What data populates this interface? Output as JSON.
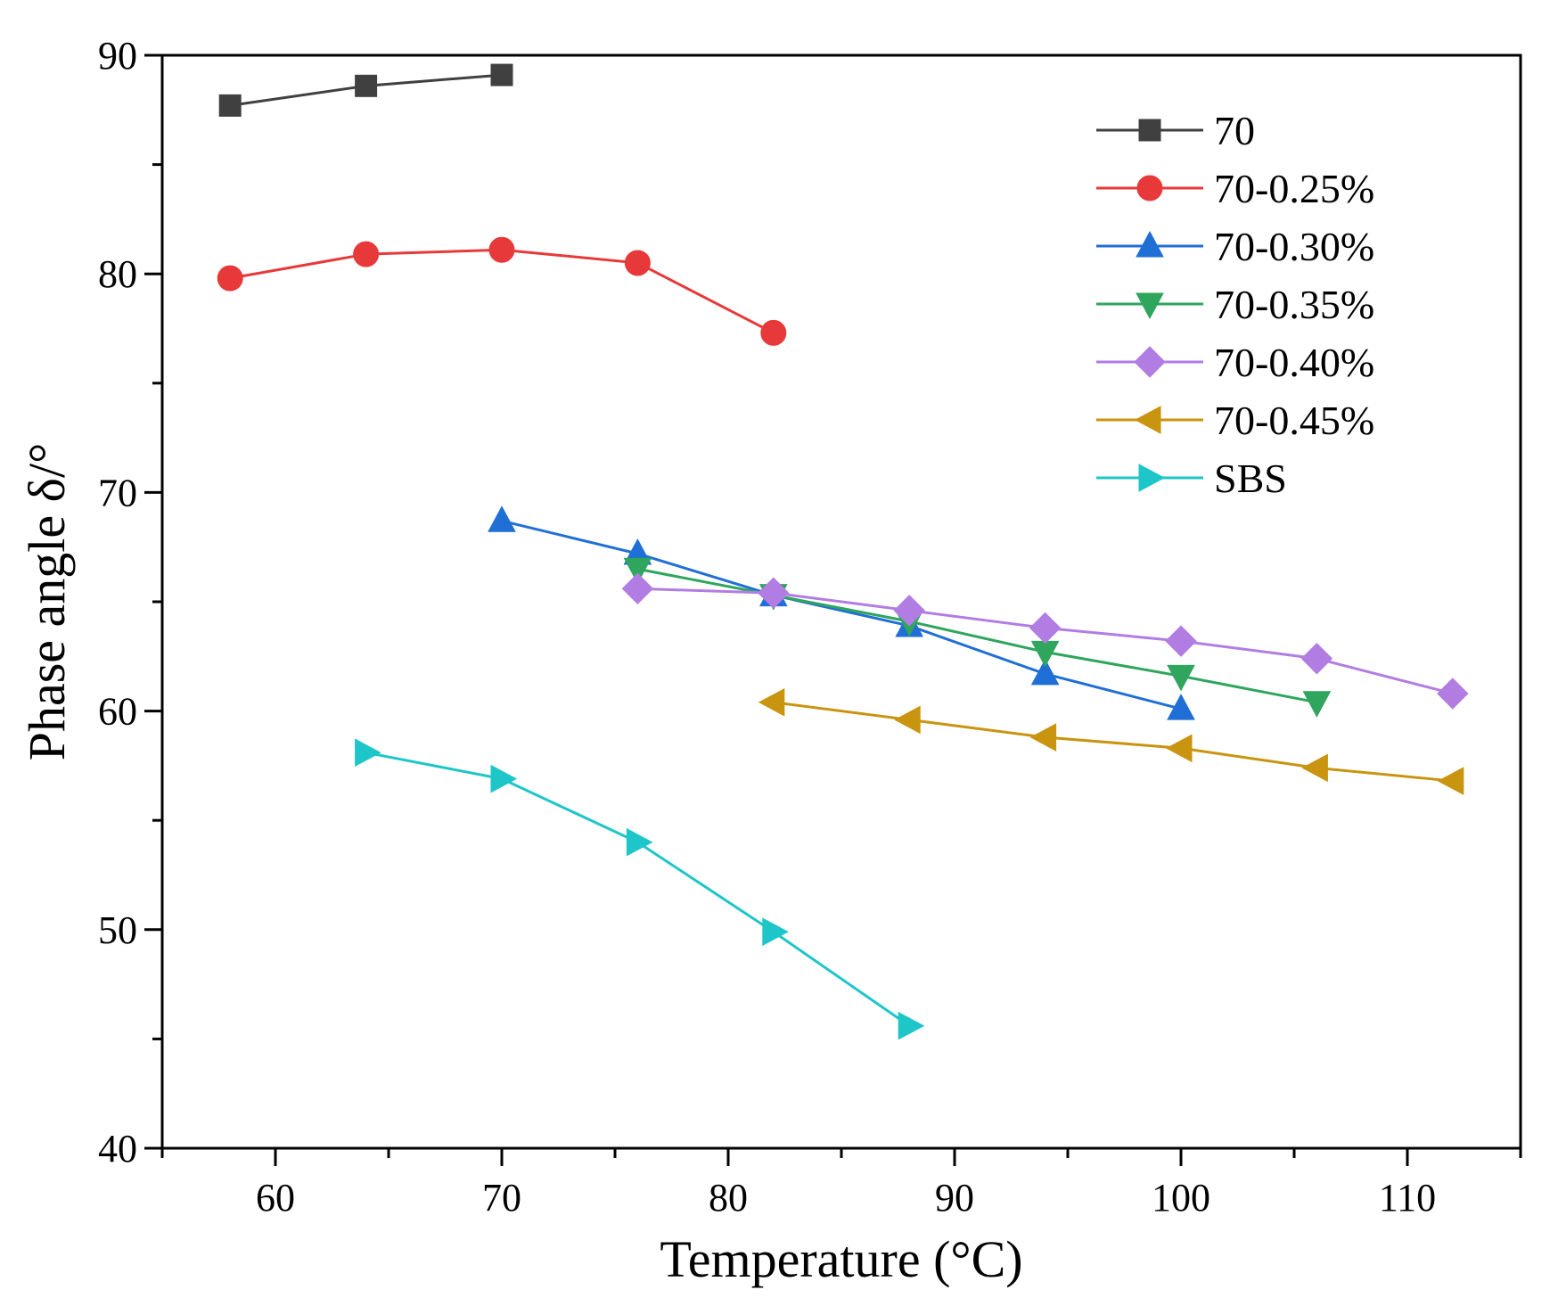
{
  "chart_data": {
    "type": "line",
    "title": "",
    "xlabel": "Temperature (°C)",
    "ylabel": "Phase angle δ/°",
    "xlim": [
      55,
      115
    ],
    "ylim": [
      40,
      90
    ],
    "xticks": [
      60,
      70,
      80,
      90,
      100,
      110
    ],
    "yticks": [
      40,
      50,
      60,
      70,
      80,
      90
    ],
    "xtick_labels": [
      "60",
      "70",
      "80",
      "90",
      "100",
      "110"
    ],
    "ytick_labels": [
      "40",
      "50",
      "60",
      "70",
      "80",
      "90"
    ],
    "grid": false,
    "legend_position": "top-right",
    "series": [
      {
        "name": "70",
        "color": "#404040",
        "marker": "square",
        "x": [
          58,
          64,
          70
        ],
        "y": [
          87.7,
          88.6,
          89.1
        ]
      },
      {
        "name": "70-0.25%",
        "color": "#e8393a",
        "marker": "circle",
        "x": [
          58,
          64,
          70,
          76,
          82
        ],
        "y": [
          79.8,
          80.9,
          81.1,
          80.5,
          77.3
        ]
      },
      {
        "name": "70-0.30%",
        "color": "#1f6fd6",
        "marker": "triangle-up",
        "x": [
          70,
          76,
          82,
          88,
          94,
          100
        ],
        "y": [
          68.7,
          67.2,
          65.3,
          63.9,
          61.7,
          60.1
        ]
      },
      {
        "name": "70-0.35%",
        "color": "#2fa55d",
        "marker": "triangle-down",
        "x": [
          76,
          82,
          88,
          94,
          100,
          106
        ],
        "y": [
          66.5,
          65.3,
          64.1,
          62.7,
          61.6,
          60.4
        ]
      },
      {
        "name": "70-0.40%",
        "color": "#b27de3",
        "marker": "diamond",
        "x": [
          76,
          82,
          88,
          94,
          100,
          106,
          112
        ],
        "y": [
          65.6,
          65.4,
          64.6,
          63.8,
          63.2,
          62.4,
          60.8
        ]
      },
      {
        "name": "70-0.45%",
        "color": "#c9940f",
        "marker": "triangle-left",
        "x": [
          82,
          88,
          94,
          100,
          106,
          112
        ],
        "y": [
          60.4,
          59.6,
          58.8,
          58.3,
          57.4,
          56.8
        ]
      },
      {
        "name": "SBS",
        "color": "#1ec6c9",
        "marker": "triangle-right",
        "x": [
          64,
          70,
          76,
          82,
          88
        ],
        "y": [
          58.1,
          56.9,
          54.0,
          49.9,
          45.6
        ]
      }
    ]
  }
}
